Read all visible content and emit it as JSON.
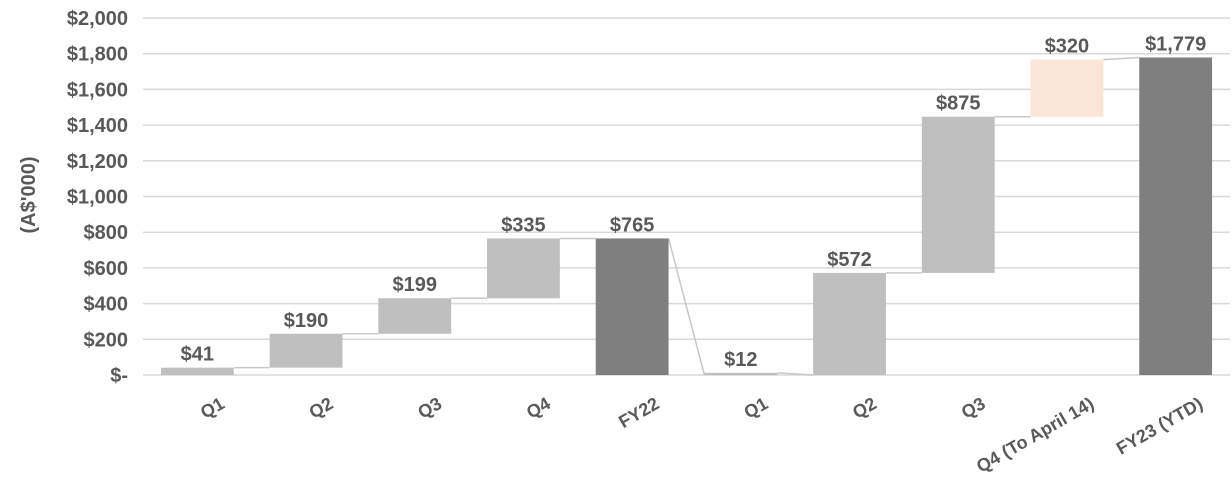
{
  "chart_data": {
    "type": "bar",
    "subtype": "waterfall",
    "title": "",
    "xlabel": "",
    "ylabel": "(A$'000)",
    "ylim": [
      0,
      2000
    ],
    "yticks": [
      0,
      200,
      400,
      600,
      800,
      1000,
      1200,
      1400,
      1600,
      1800,
      2000
    ],
    "ytick_labels": [
      "$-",
      "$200",
      "$400",
      "$600",
      "$800",
      "$1,000",
      "$1,200",
      "$1,400",
      "$1,600",
      "$1,800",
      "$2,000"
    ],
    "grid": true,
    "categories": [
      "Q1",
      "Q2",
      "Q3",
      "Q4",
      "FY22",
      "Q1",
      "Q2",
      "Q3",
      "Q4 (To April 14)",
      "FY23 (YTD)"
    ],
    "values": [
      41,
      190,
      199,
      335,
      765,
      12,
      572,
      875,
      320,
      1779
    ],
    "data_labels": [
      "$41",
      "$190",
      "$199",
      "$335",
      "$765",
      "$12",
      "$572",
      "$875",
      "$320",
      "$1,779"
    ],
    "kinds": [
      "increase",
      "increase",
      "increase",
      "increase",
      "total",
      "increase",
      "increase",
      "increase",
      "partial",
      "total"
    ],
    "colors": {
      "increase": "#bfbfbf",
      "total": "#7f7f7f",
      "partial": "#fbe5d6",
      "connector": "#c8c8c8",
      "grid": "#d9d9d9",
      "text": "#595959"
    }
  }
}
